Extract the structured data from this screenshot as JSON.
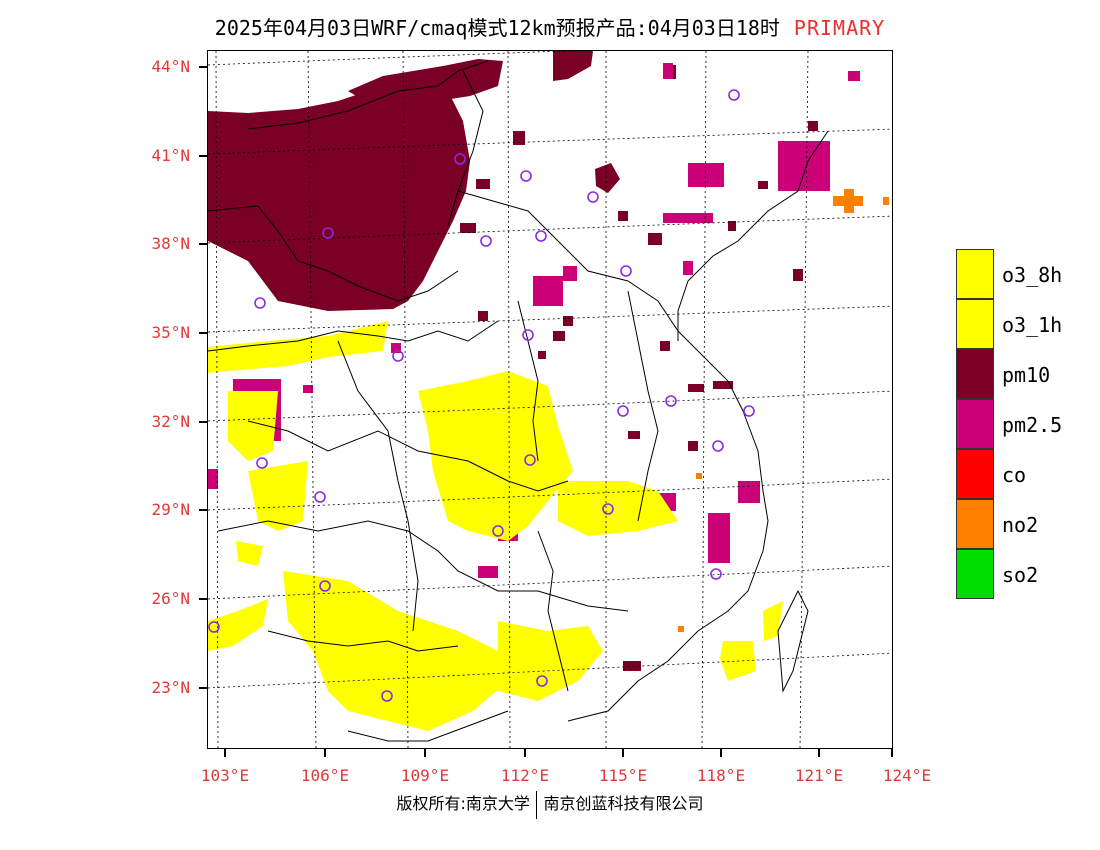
{
  "title": {
    "main": "2025年04月03日WRF/cmaq模式12km预报产品:04月03日18时",
    "tag": "PRIMARY"
  },
  "map": {
    "lat_labels": [
      "44°N",
      "41°N",
      "38°N",
      "35°N",
      "32°N",
      "29°N",
      "26°N",
      "23°N"
    ],
    "lon_labels": [
      "103°E",
      "106°E",
      "109°E",
      "112°E",
      "115°E",
      "118°E",
      "121°E",
      "124°E"
    ],
    "colors": {
      "o3_8h": "#ffff00",
      "o3_1h": "#ffff00",
      "pm10": "#7a0026",
      "pm2_5": "#cc0077",
      "co": "#ff0000",
      "no2": "#ff7f00",
      "so2": "#00dd00",
      "station": "#8a2be2",
      "label": "#e03a3a"
    }
  },
  "legend": {
    "items": [
      {
        "label": "o3_8h",
        "color": "#ffff00"
      },
      {
        "label": "o3_1h",
        "color": "#ffff00"
      },
      {
        "label": "pm10",
        "color": "#7a0026"
      },
      {
        "label": "pm2.5",
        "color": "#cc0077"
      },
      {
        "label": "co",
        "color": "#ff0000"
      },
      {
        "label": "no2",
        "color": "#ff7f00"
      },
      {
        "label": "so2",
        "color": "#00dd00"
      }
    ]
  },
  "footer": {
    "left": "版权所有:南京大学",
    "right": "南京创蓝科技有限公司"
  }
}
